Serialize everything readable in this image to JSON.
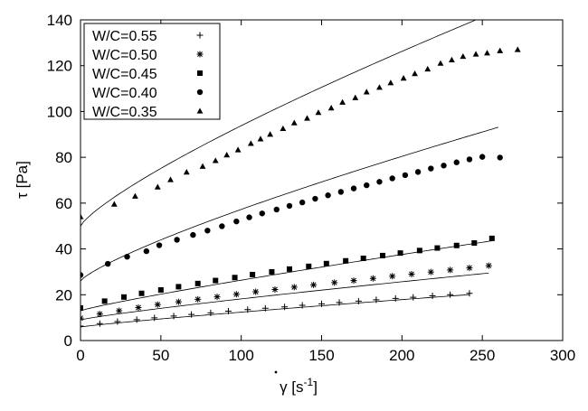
{
  "chart_data": {
    "type": "scatter",
    "xlabel_parts": {
      "symbol": "γ",
      "unit_open": " [s",
      "exponent": "-1",
      "unit_close": "]"
    },
    "ylabel": "τ [Pa]",
    "xlim": [
      0,
      300
    ],
    "ylim": [
      0,
      140
    ],
    "xticks": [
      "0",
      "50",
      "100",
      "150",
      "200",
      "250",
      "300"
    ],
    "yticks": [
      "0",
      "20",
      "40",
      "60",
      "80",
      "100",
      "120",
      "140"
    ],
    "grid": false,
    "legend_position": "top-left",
    "series": [
      {
        "name": "W/C=0.55",
        "marker": "plus",
        "x": [
          0,
          12,
          23,
          35,
          46,
          58,
          69,
          81,
          92,
          104,
          115,
          127,
          138,
          150,
          161,
          173,
          184,
          196,
          207,
          219,
          230,
          242
        ],
        "y": [
          6.3,
          7.4,
          8.3,
          9.1,
          9.9,
          10.7,
          11.4,
          12.1,
          12.8,
          13.5,
          14.1,
          14.7,
          15.4,
          16.0,
          16.6,
          17.2,
          17.8,
          18.4,
          18.9,
          19.5,
          20.0,
          20.6
        ],
        "fit": {
          "a": 5.9,
          "b": 0.113,
          "n": 0.88,
          "x_end": 242
        }
      },
      {
        "name": "W/C=0.50",
        "marker": "star",
        "x": [
          0,
          12,
          24,
          36,
          48,
          61,
          73,
          85,
          97,
          109,
          121,
          133,
          145,
          158,
          170,
          182,
          194,
          206,
          218,
          230,
          242,
          254
        ],
        "y": [
          9.8,
          11.6,
          13.0,
          14.4,
          15.7,
          16.9,
          18.0,
          19.1,
          20.2,
          21.3,
          22.3,
          23.3,
          24.3,
          25.3,
          26.2,
          27.1,
          28.1,
          29.0,
          29.9,
          30.8,
          31.7,
          32.7
        ],
        "fit": {
          "a": 9.0,
          "b": 0.175,
          "n": 0.86,
          "x_end": 254
        }
      },
      {
        "name": "W/C=0.45",
        "marker": "square",
        "x": [
          0,
          15,
          27,
          38,
          50,
          61,
          73,
          84,
          96,
          107,
          119,
          130,
          142,
          153,
          165,
          176,
          188,
          199,
          211,
          222,
          234,
          245,
          256
        ],
        "y": [
          14.2,
          17.2,
          19.0,
          20.6,
          22.1,
          23.5,
          24.9,
          26.2,
          27.5,
          28.8,
          30.0,
          31.2,
          32.4,
          33.6,
          34.8,
          35.9,
          37.1,
          38.2,
          39.3,
          40.4,
          41.5,
          42.6,
          44.6
        ],
        "fit": {
          "a": 13.0,
          "b": 0.232,
          "n": 0.88,
          "x_end": 256
        }
      },
      {
        "name": "W/C=0.40",
        "marker": "circle",
        "x": [
          0,
          17,
          29,
          41,
          49,
          60,
          70,
          79,
          88,
          97,
          105,
          113,
          122,
          130,
          138,
          146,
          154,
          162,
          170,
          178,
          186,
          194,
          202,
          210,
          218,
          226,
          234,
          242,
          250,
          261
        ],
        "y": [
          28.6,
          33.5,
          36.6,
          39.0,
          41.6,
          44.0,
          46.1,
          48.0,
          49.9,
          52.0,
          53.8,
          55.5,
          57.2,
          58.8,
          60.3,
          61.9,
          63.4,
          64.9,
          66.4,
          67.8,
          69.3,
          70.8,
          72.2,
          73.6,
          75.1,
          76.4,
          77.8,
          79.1,
          80.2,
          79.9
        ],
        "fit": {
          "a": 26.0,
          "b": 0.785,
          "n": 0.8,
          "x_end": 261
        }
      },
      {
        "name": "W/C=0.35",
        "marker": "triangle",
        "x": [
          0,
          21,
          34,
          48,
          56,
          66,
          76,
          84,
          91,
          98,
          106,
          112,
          118,
          126,
          133,
          141,
          148,
          156,
          163,
          171,
          178,
          186,
          193,
          201,
          208,
          216,
          224,
          231,
          238,
          246,
          253,
          261,
          272
        ],
        "y": [
          54.0,
          59.5,
          63.0,
          67.0,
          70.2,
          73.5,
          76.0,
          78.5,
          81.0,
          83.2,
          86.0,
          88.0,
          90.0,
          92.5,
          95.0,
          97.0,
          99.5,
          101.5,
          104.0,
          106.0,
          108.5,
          110.5,
          112.5,
          114.5,
          116.5,
          118.5,
          121.0,
          122.5,
          124.0,
          125.0,
          125.5,
          126.5,
          127.0
        ],
        "fit": {
          "a": 50.0,
          "b": 1.1,
          "n": 0.8,
          "x_end": 270
        }
      }
    ]
  }
}
